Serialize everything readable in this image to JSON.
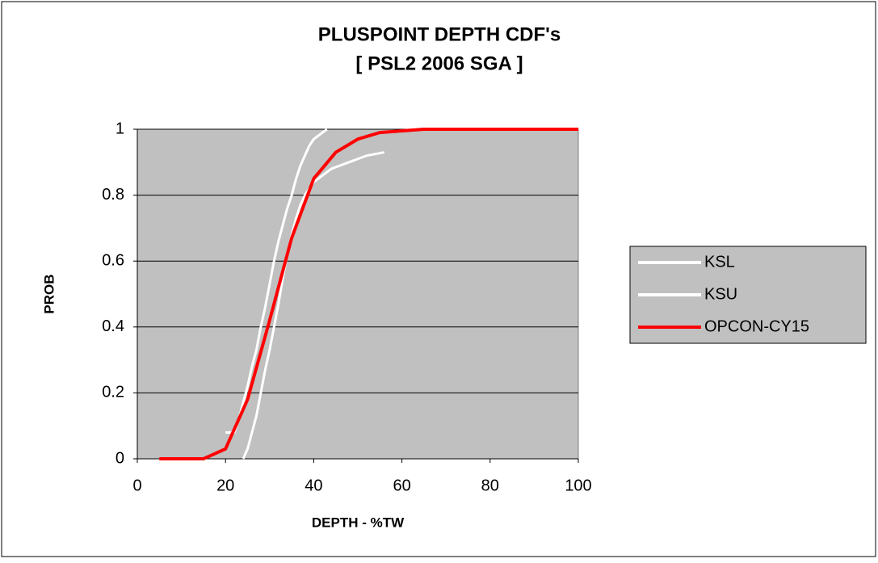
{
  "chart_data": {
    "type": "line",
    "title": [
      "PLUSPOINT DEPTH CDF's",
      "[ PSL2 2006 SGA ]"
    ],
    "x_label": "DEPTH - %TW",
    "y_label": "PROB",
    "xlim": [
      0,
      100
    ],
    "xticks": [
      0,
      20,
      40,
      60,
      80,
      100
    ],
    "ylim": [
      0,
      1
    ],
    "yticks": [
      0,
      0.2,
      0.4,
      0.6,
      0.8,
      1
    ],
    "grid": true,
    "legend": "right",
    "background": "#c0c0c0",
    "series": [
      {
        "name": "KSL",
        "color": "#ffffff",
        "x": [
          20,
          22,
          23,
          24,
          25,
          26,
          27,
          28,
          29,
          30,
          31,
          32,
          33,
          34,
          35,
          36,
          37,
          38,
          39,
          40,
          41,
          42,
          43
        ],
        "values": [
          0.08,
          0.08,
          0.12,
          0.17,
          0.22,
          0.28,
          0.33,
          0.4,
          0.46,
          0.53,
          0.6,
          0.66,
          0.71,
          0.76,
          0.8,
          0.85,
          0.89,
          0.92,
          0.95,
          0.97,
          0.98,
          0.99,
          1.0
        ]
      },
      {
        "name": "KSU",
        "color": "#ffffff",
        "x": [
          24,
          25,
          26,
          27,
          28,
          29,
          30,
          31,
          32,
          33,
          34,
          35,
          36,
          37,
          38,
          39,
          40,
          42,
          44,
          46,
          48,
          50,
          52,
          54,
          56
        ],
        "values": [
          0,
          0.03,
          0.08,
          0.13,
          0.2,
          0.27,
          0.33,
          0.4,
          0.47,
          0.55,
          0.62,
          0.68,
          0.73,
          0.77,
          0.8,
          0.82,
          0.84,
          0.86,
          0.88,
          0.89,
          0.9,
          0.91,
          0.92,
          0.925,
          0.93
        ]
      },
      {
        "name": "OPCON-CY15",
        "color": "#ff0000",
        "x": [
          5,
          15,
          20,
          25,
          30,
          35,
          40,
          45,
          50,
          55,
          60,
          65,
          70,
          80,
          90,
          100
        ],
        "values": [
          0,
          0,
          0.03,
          0.18,
          0.42,
          0.67,
          0.85,
          0.93,
          0.97,
          0.99,
          0.995,
          1,
          1,
          1,
          1,
          1
        ]
      }
    ]
  }
}
